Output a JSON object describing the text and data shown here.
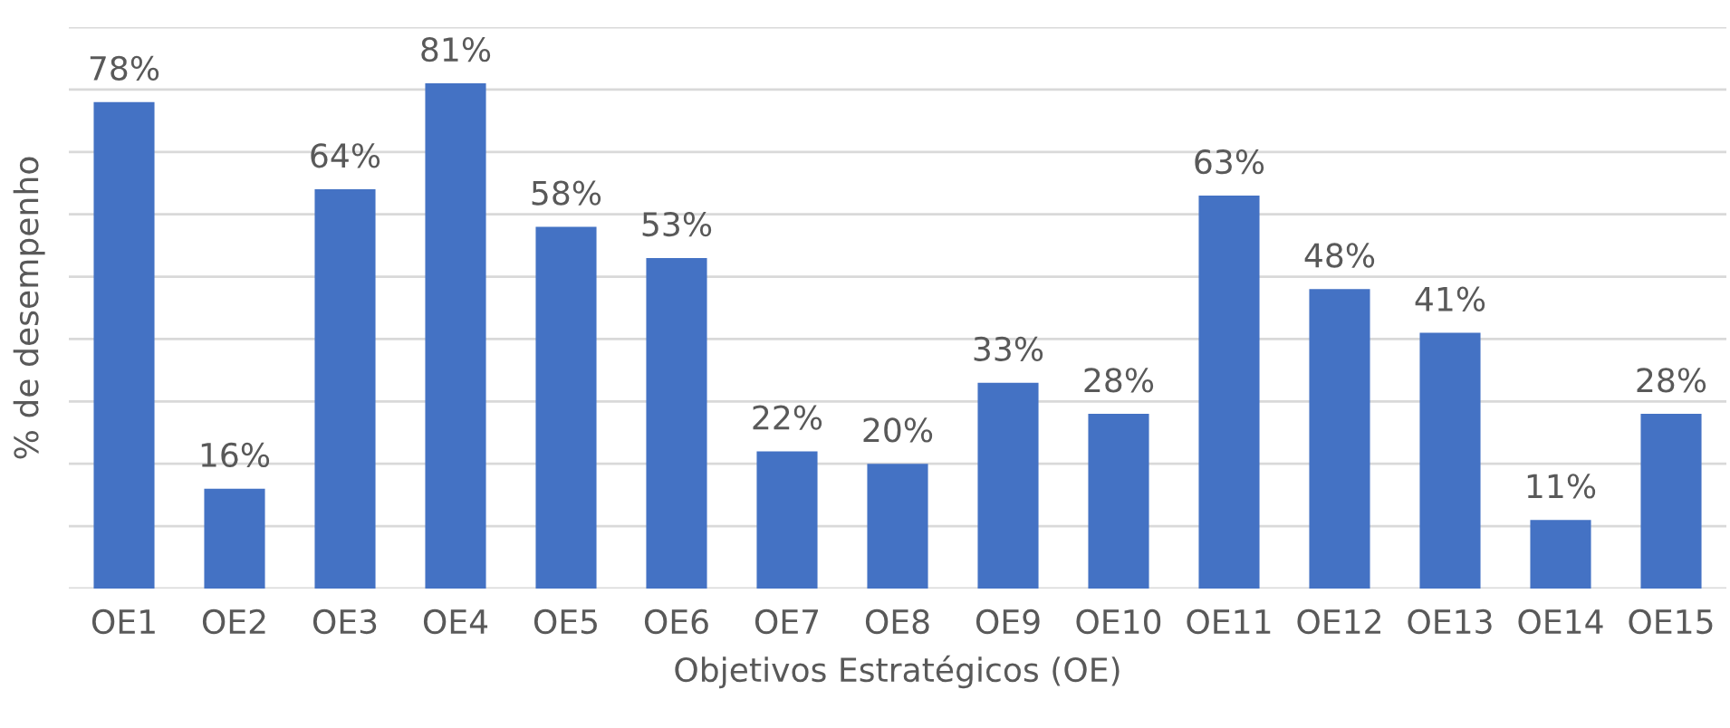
{
  "chart_data": {
    "type": "bar",
    "xlabel": "Objetivos Estratégicos (OE)",
    "ylabel": "% de desempenho",
    "categories": [
      "OE1",
      "OE2",
      "OE3",
      "OE4",
      "OE5",
      "OE6",
      "OE7",
      "OE8",
      "OE9",
      "OE10",
      "OE11",
      "OE12",
      "OE13",
      "OE14",
      "OE15"
    ],
    "values": [
      78,
      16,
      64,
      81,
      58,
      53,
      22,
      20,
      33,
      28,
      63,
      48,
      41,
      11,
      28
    ],
    "value_labels": [
      "78%",
      "16%",
      "64%",
      "81%",
      "58%",
      "53%",
      "22%",
      "20%",
      "33%",
      "28%",
      "63%",
      "48%",
      "41%",
      "11%",
      "28%"
    ],
    "color": "#4472c4",
    "ylim": [
      0,
      90
    ],
    "yticks": [
      {
        "value": 0,
        "label": null
      },
      {
        "value": 10,
        "label": null
      },
      {
        "value": 20,
        "label": null
      },
      {
        "value": 30,
        "label": null
      },
      {
        "value": 40,
        "label": null
      },
      {
        "value": 50,
        "label": null
      },
      {
        "value": 60,
        "label": null
      },
      {
        "value": 70,
        "label": null
      },
      {
        "value": 80,
        "label": null
      },
      {
        "value": 90,
        "label": null
      }
    ],
    "tick_labels": "x",
    "grid": "y",
    "legend": false
  }
}
